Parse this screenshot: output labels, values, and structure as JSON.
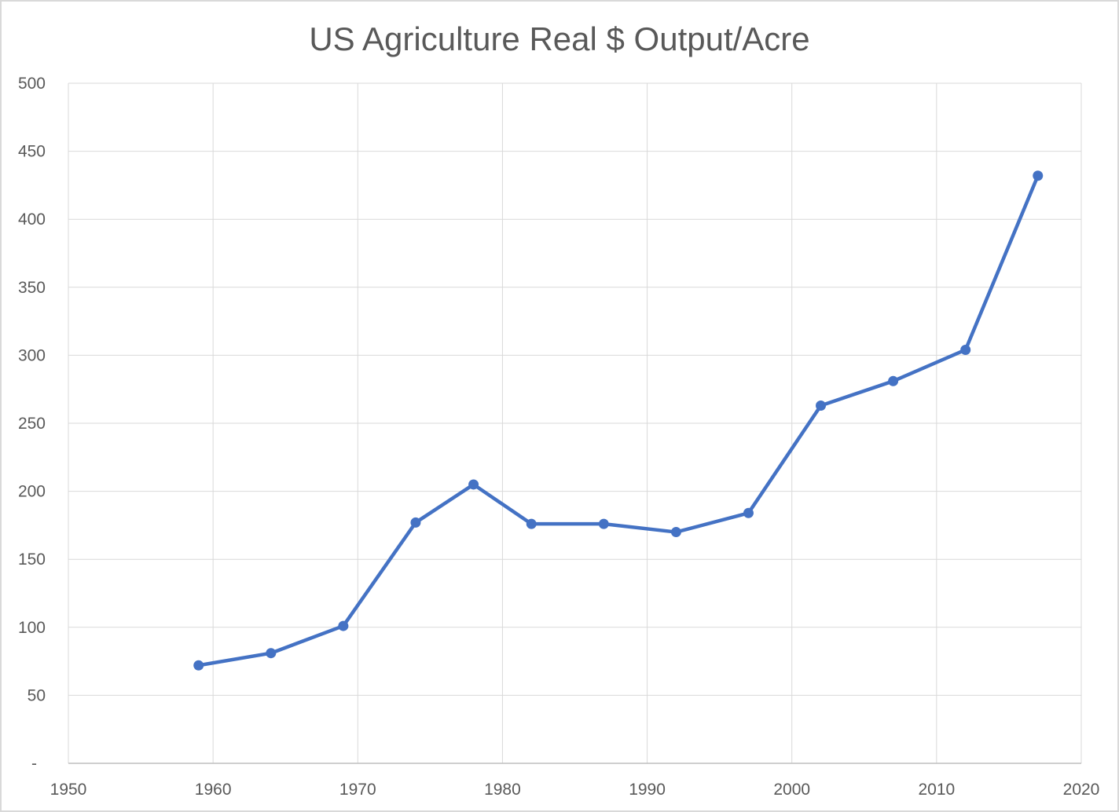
{
  "chart_data": {
    "type": "line",
    "title": "US Agriculture Real $ Output/Acre",
    "x": [
      1959,
      1964,
      1969,
      1974,
      1978,
      1982,
      1987,
      1992,
      1997,
      2002,
      2007,
      2012,
      2017
    ],
    "values": [
      72,
      81,
      101,
      177,
      205,
      176,
      176,
      170,
      184,
      263,
      281,
      304,
      432
    ],
    "xlabel": "",
    "ylabel": "",
    "xlim": [
      1950,
      2020
    ],
    "ylim": [
      0,
      500
    ],
    "x_ticks": [
      1950,
      1960,
      1970,
      1980,
      1990,
      2000,
      2010,
      2020
    ],
    "x_tick_labels": [
      "1950",
      "1960",
      "1970",
      "1980",
      "1990",
      "2000",
      "2010",
      "2020"
    ],
    "y_ticks": [
      0,
      50,
      100,
      150,
      200,
      250,
      300,
      350,
      400,
      450,
      500
    ],
    "y_tick_labels": [
      "-",
      "50",
      "100",
      "150",
      "200",
      "250",
      "300",
      "350",
      "400",
      "450",
      "500"
    ],
    "grid": true,
    "legend": false,
    "marker": "circle",
    "colors": {
      "series": "#4472C4",
      "gridline": "#D9D9D9",
      "axis_line": "#BFBFBF",
      "text": "#595959",
      "background": "#FFFFFF",
      "border": "#D9D9D9"
    }
  }
}
